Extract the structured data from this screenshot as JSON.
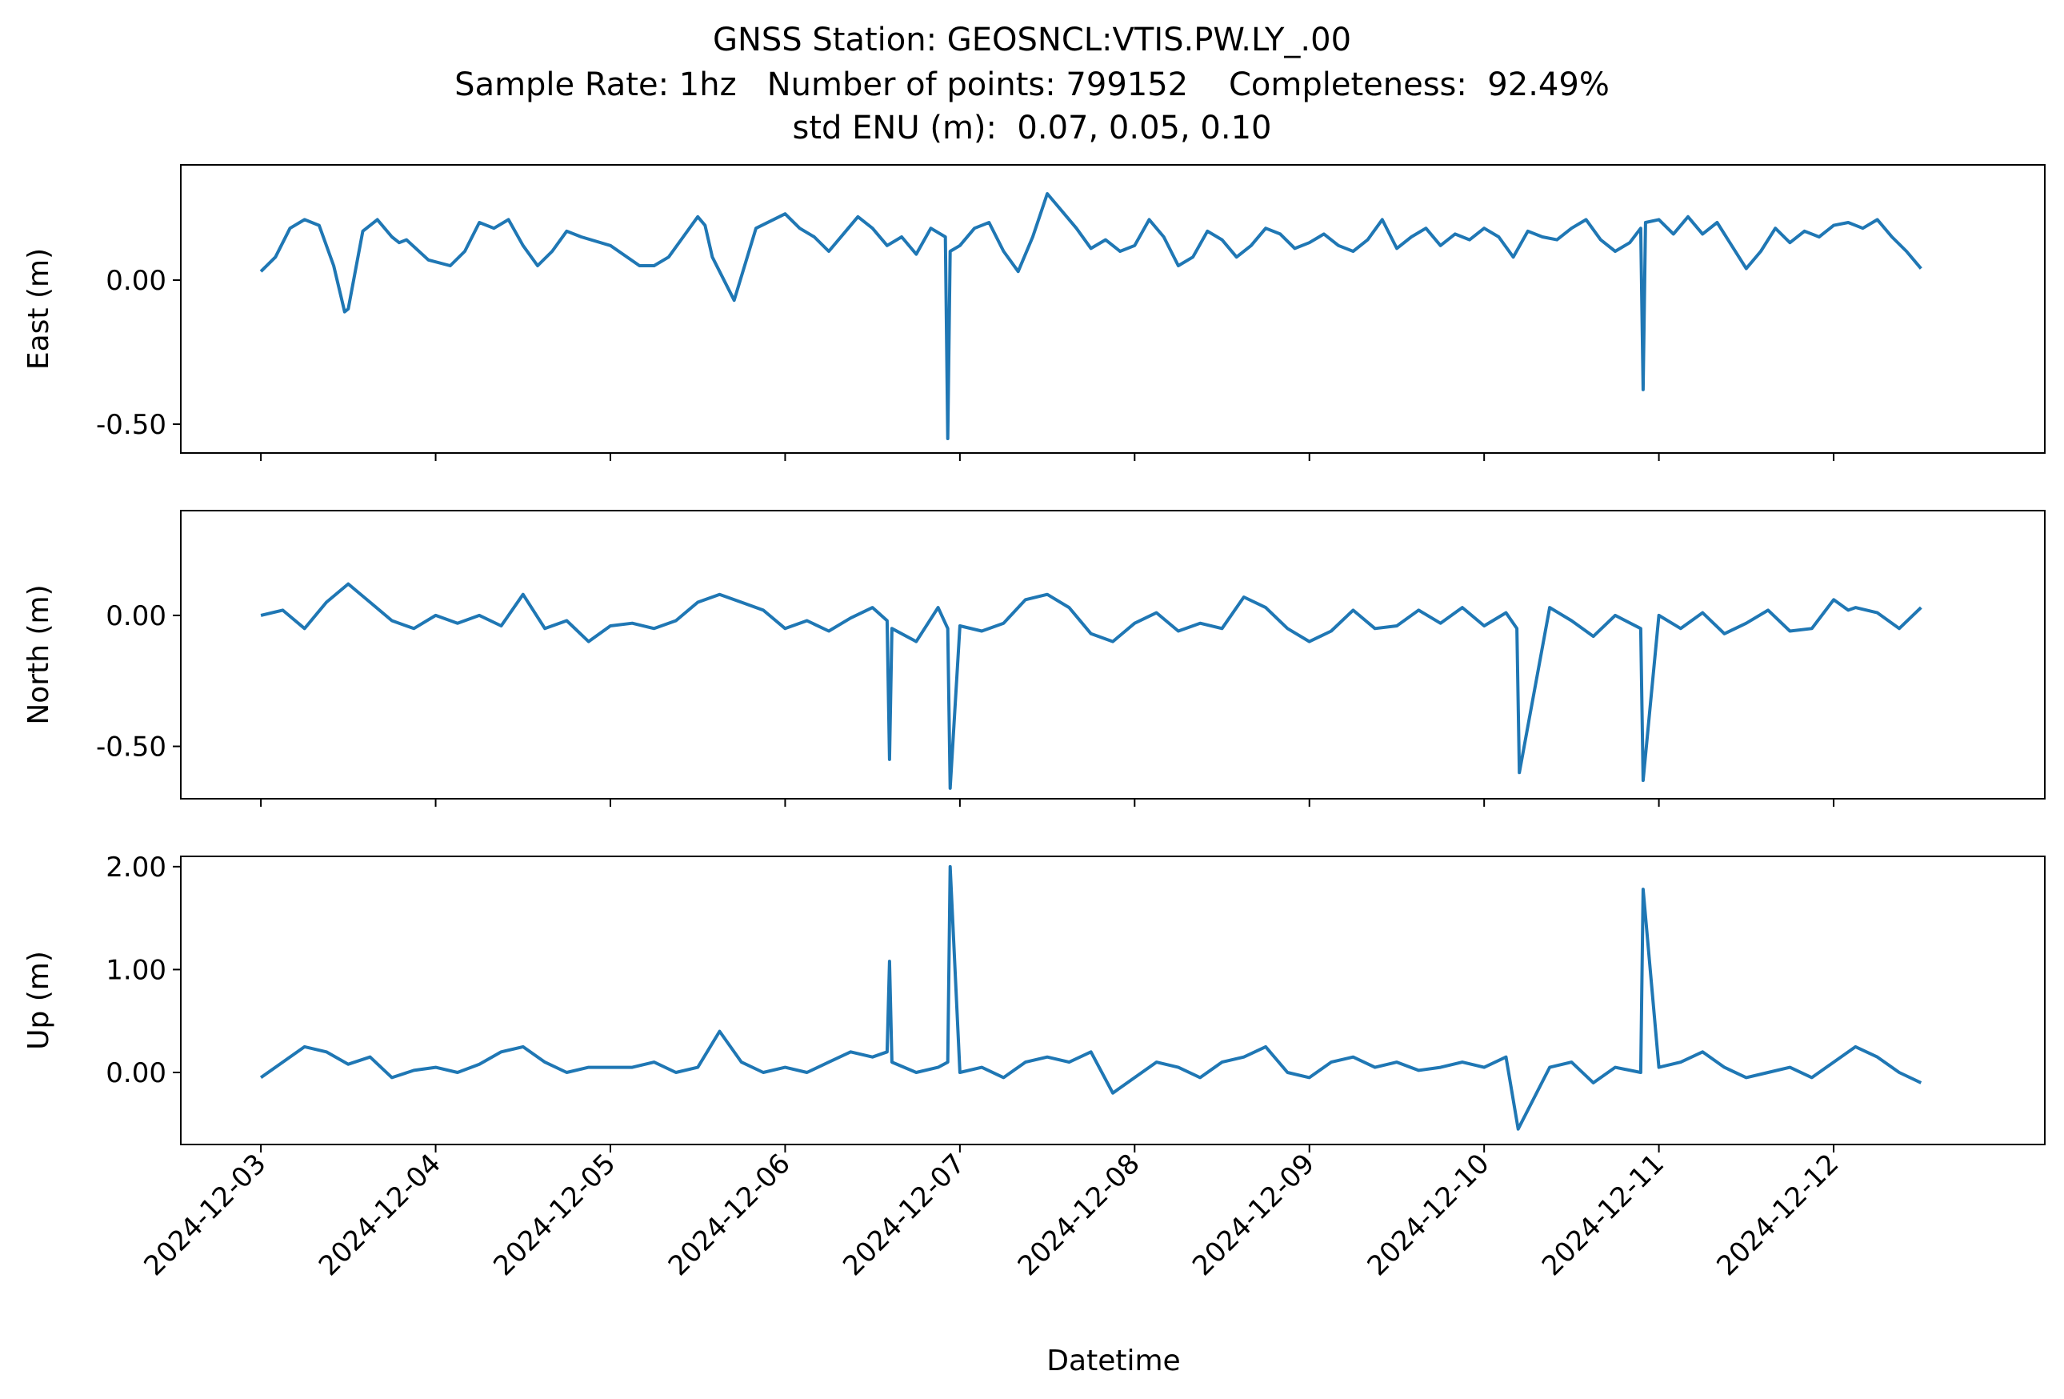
{
  "figure": {
    "title_lines": [
      "GNSS Station: GEOSNCL:VTIS.PW.LY_.00",
      "Sample Rate: 1hz   Number of points: 799152    Completeness:  92.49%",
      "std ENU (m):  0.07, 0.05, 0.10"
    ],
    "xlabel": "Datetime"
  },
  "colors": {
    "series": "#1f77b4",
    "axes": "#000000",
    "background": "#ffffff"
  },
  "chart_data": [
    {
      "type": "line",
      "ylabel": "East (m)",
      "ylim": [
        -0.6,
        0.4
      ],
      "yticks": [
        0.0,
        -0.5
      ],
      "ytick_labels": [
        "0.00",
        "-0.50"
      ],
      "xlim": [
        "2024-12-02 13:00",
        "2024-12-13 05:00"
      ],
      "xtick_labels": [],
      "grid": false,
      "series": [
        {
          "x": [
            "2024-12-03 00:00",
            "2024-12-03 02:00",
            "2024-12-03 04:00",
            "2024-12-03 06:00",
            "2024-12-03 08:00",
            "2024-12-03 10:00",
            "2024-12-03 11:30",
            "2024-12-03 12:00",
            "2024-12-03 14:00",
            "2024-12-03 16:00",
            "2024-12-03 18:00",
            "2024-12-03 19:00",
            "2024-12-03 20:00",
            "2024-12-03 23:00",
            "2024-12-04 02:00",
            "2024-12-04 04:00",
            "2024-12-04 06:00",
            "2024-12-04 08:00",
            "2024-12-04 10:00",
            "2024-12-04 12:00",
            "2024-12-04 14:00",
            "2024-12-04 16:00",
            "2024-12-04 18:00",
            "2024-12-04 20:00",
            "2024-12-05 00:00",
            "2024-12-05 04:00",
            "2024-12-05 06:00",
            "2024-12-05 08:00",
            "2024-12-05 10:00",
            "2024-12-05 12:00",
            "2024-12-05 13:00",
            "2024-12-05 14:00",
            "2024-12-05 17:00",
            "2024-12-05 20:00",
            "2024-12-06 00:00",
            "2024-12-06 02:00",
            "2024-12-06 04:00",
            "2024-12-06 06:00",
            "2024-12-06 08:00",
            "2024-12-06 10:00",
            "2024-12-06 12:00",
            "2024-12-06 14:00",
            "2024-12-06 16:00",
            "2024-12-06 18:00",
            "2024-12-06 20:00",
            "2024-12-06 22:00",
            "2024-12-06 22:20",
            "2024-12-06 22:40",
            "2024-12-07 00:00",
            "2024-12-07 02:00",
            "2024-12-07 04:00",
            "2024-12-07 06:00",
            "2024-12-07 08:00",
            "2024-12-07 10:00",
            "2024-12-07 12:00",
            "2024-12-07 14:00",
            "2024-12-07 16:00",
            "2024-12-07 18:00",
            "2024-12-07 20:00",
            "2024-12-07 22:00",
            "2024-12-08 00:00",
            "2024-12-08 02:00",
            "2024-12-08 04:00",
            "2024-12-08 06:00",
            "2024-12-08 08:00",
            "2024-12-08 10:00",
            "2024-12-08 12:00",
            "2024-12-08 14:00",
            "2024-12-08 16:00",
            "2024-12-08 18:00",
            "2024-12-08 20:00",
            "2024-12-08 22:00",
            "2024-12-09 00:00",
            "2024-12-09 02:00",
            "2024-12-09 04:00",
            "2024-12-09 06:00",
            "2024-12-09 08:00",
            "2024-12-09 10:00",
            "2024-12-09 12:00",
            "2024-12-09 14:00",
            "2024-12-09 16:00",
            "2024-12-09 18:00",
            "2024-12-09 20:00",
            "2024-12-09 22:00",
            "2024-12-10 00:00",
            "2024-12-10 02:00",
            "2024-12-10 04:00",
            "2024-12-10 06:00",
            "2024-12-10 08:00",
            "2024-12-10 10:00",
            "2024-12-10 12:00",
            "2024-12-10 14:00",
            "2024-12-10 16:00",
            "2024-12-10 18:00",
            "2024-12-10 20:00",
            "2024-12-10 21:30",
            "2024-12-10 21:50",
            "2024-12-10 22:10",
            "2024-12-11 00:00",
            "2024-12-11 02:00",
            "2024-12-11 04:00",
            "2024-12-11 06:00",
            "2024-12-11 08:00",
            "2024-12-11 10:00",
            "2024-12-11 12:00",
            "2024-12-11 14:00",
            "2024-12-11 16:00",
            "2024-12-11 18:00",
            "2024-12-11 20:00",
            "2024-12-11 22:00",
            "2024-12-12 00:00",
            "2024-12-12 02:00",
            "2024-12-12 04:00",
            "2024-12-12 06:00",
            "2024-12-12 08:00",
            "2024-12-12 10:00",
            "2024-12-12 12:00"
          ],
          "y": [
            0.03,
            0.08,
            0.18,
            0.21,
            0.19,
            0.05,
            -0.11,
            -0.1,
            0.17,
            0.21,
            0.15,
            0.13,
            0.14,
            0.07,
            0.05,
            0.1,
            0.2,
            0.18,
            0.21,
            0.12,
            0.05,
            0.1,
            0.17,
            0.15,
            0.12,
            0.05,
            0.05,
            0.08,
            0.15,
            0.22,
            0.19,
            0.08,
            -0.07,
            0.18,
            0.23,
            0.18,
            0.15,
            0.1,
            0.16,
            0.22,
            0.18,
            0.12,
            0.15,
            0.09,
            0.18,
            0.15,
            -0.55,
            0.1,
            0.12,
            0.18,
            0.2,
            0.1,
            0.03,
            0.15,
            0.3,
            0.24,
            0.18,
            0.11,
            0.14,
            0.1,
            0.12,
            0.21,
            0.15,
            0.05,
            0.08,
            0.17,
            0.14,
            0.08,
            0.12,
            0.18,
            0.16,
            0.11,
            0.13,
            0.16,
            0.12,
            0.1,
            0.14,
            0.21,
            0.11,
            0.15,
            0.18,
            0.12,
            0.16,
            0.14,
            0.18,
            0.15,
            0.08,
            0.17,
            0.15,
            0.14,
            0.18,
            0.21,
            0.14,
            0.1,
            0.13,
            0.18,
            -0.38,
            0.2,
            0.21,
            0.16,
            0.22,
            0.16,
            0.2,
            0.12,
            0.04,
            0.1,
            0.18,
            0.13,
            0.17,
            0.15,
            0.19,
            0.2,
            0.18,
            0.21,
            0.15,
            0.1,
            0.04
          ]
        }
      ]
    },
    {
      "type": "line",
      "ylabel": "North (m)",
      "ylim": [
        -0.7,
        0.4
      ],
      "yticks": [
        0.0,
        -0.5
      ],
      "ytick_labels": [
        "0.00",
        "-0.50"
      ],
      "xlim": [
        "2024-12-02 13:00",
        "2024-12-13 05:00"
      ],
      "xtick_labels": [],
      "grid": false,
      "series": [
        {
          "x": [
            "2024-12-03 00:00",
            "2024-12-03 03:00",
            "2024-12-03 06:00",
            "2024-12-03 09:00",
            "2024-12-03 12:00",
            "2024-12-03 15:00",
            "2024-12-03 18:00",
            "2024-12-03 21:00",
            "2024-12-04 00:00",
            "2024-12-04 03:00",
            "2024-12-04 06:00",
            "2024-12-04 09:00",
            "2024-12-04 12:00",
            "2024-12-04 15:00",
            "2024-12-04 18:00",
            "2024-12-04 21:00",
            "2024-12-05 00:00",
            "2024-12-05 03:00",
            "2024-12-05 06:00",
            "2024-12-05 09:00",
            "2024-12-05 12:00",
            "2024-12-05 15:00",
            "2024-12-05 18:00",
            "2024-12-05 21:00",
            "2024-12-06 00:00",
            "2024-12-06 03:00",
            "2024-12-06 06:00",
            "2024-12-06 09:00",
            "2024-12-06 12:00",
            "2024-12-06 14:00",
            "2024-12-06 14:20",
            "2024-12-06 14:40",
            "2024-12-06 18:00",
            "2024-12-06 21:00",
            "2024-12-06 22:20",
            "2024-12-06 22:40",
            "2024-12-07 00:00",
            "2024-12-07 03:00",
            "2024-12-07 06:00",
            "2024-12-07 09:00",
            "2024-12-07 12:00",
            "2024-12-07 15:00",
            "2024-12-07 18:00",
            "2024-12-07 21:00",
            "2024-12-08 00:00",
            "2024-12-08 03:00",
            "2024-12-08 06:00",
            "2024-12-08 09:00",
            "2024-12-08 12:00",
            "2024-12-08 15:00",
            "2024-12-08 18:00",
            "2024-12-08 21:00",
            "2024-12-09 00:00",
            "2024-12-09 03:00",
            "2024-12-09 06:00",
            "2024-12-09 09:00",
            "2024-12-09 12:00",
            "2024-12-09 15:00",
            "2024-12-09 18:00",
            "2024-12-09 21:00",
            "2024-12-10 00:00",
            "2024-12-10 03:00",
            "2024-12-10 04:30",
            "2024-12-10 04:50",
            "2024-12-10 09:00",
            "2024-12-10 12:00",
            "2024-12-10 15:00",
            "2024-12-10 18:00",
            "2024-12-10 21:30",
            "2024-12-10 21:50",
            "2024-12-11 00:00",
            "2024-12-11 03:00",
            "2024-12-11 06:00",
            "2024-12-11 09:00",
            "2024-12-11 12:00",
            "2024-12-11 15:00",
            "2024-12-11 18:00",
            "2024-12-11 21:00",
            "2024-12-12 00:00",
            "2024-12-12 02:00",
            "2024-12-12 03:00",
            "2024-12-12 06:00",
            "2024-12-12 09:00",
            "2024-12-12 12:00"
          ],
          "y": [
            0.0,
            0.02,
            -0.05,
            0.05,
            0.12,
            0.05,
            -0.02,
            -0.05,
            0.0,
            -0.03,
            0.0,
            -0.04,
            0.08,
            -0.05,
            -0.02,
            -0.1,
            -0.04,
            -0.03,
            -0.05,
            -0.02,
            0.05,
            0.08,
            0.05,
            0.02,
            -0.05,
            -0.02,
            -0.06,
            -0.01,
            0.03,
            -0.02,
            -0.55,
            -0.05,
            -0.1,
            0.03,
            -0.05,
            -0.66,
            -0.04,
            -0.06,
            -0.03,
            0.06,
            0.08,
            0.03,
            -0.07,
            -0.1,
            -0.03,
            0.01,
            -0.06,
            -0.03,
            -0.05,
            0.07,
            0.03,
            -0.05,
            -0.1,
            -0.06,
            0.02,
            -0.05,
            -0.04,
            0.02,
            -0.03,
            0.03,
            -0.04,
            0.01,
            -0.05,
            -0.6,
            0.03,
            -0.02,
            -0.08,
            0.0,
            -0.05,
            -0.63,
            0.0,
            -0.05,
            0.01,
            -0.07,
            -0.03,
            0.02,
            -0.06,
            -0.05,
            0.06,
            0.02,
            0.03,
            0.01,
            -0.05,
            0.03
          ]
        }
      ]
    },
    {
      "type": "line",
      "ylabel": "Up (m)",
      "ylim": [
        -0.7,
        2.1
      ],
      "yticks": [
        2.0,
        1.0,
        0.0
      ],
      "ytick_labels": [
        "2.00",
        "1.00",
        "0.00"
      ],
      "xlim": [
        "2024-12-02 13:00",
        "2024-12-13 05:00"
      ],
      "xticks": [
        "2024-12-03",
        "2024-12-04",
        "2024-12-05",
        "2024-12-06",
        "2024-12-07",
        "2024-12-08",
        "2024-12-09",
        "2024-12-10",
        "2024-12-11",
        "2024-12-12"
      ],
      "xtick_labels": [
        "2024-12-03",
        "2024-12-04",
        "2024-12-05",
        "2024-12-06",
        "2024-12-07",
        "2024-12-08",
        "2024-12-09",
        "2024-12-10",
        "2024-12-11",
        "2024-12-12"
      ],
      "grid": false,
      "series": [
        {
          "x": [
            "2024-12-03 00:00",
            "2024-12-03 03:00",
            "2024-12-03 06:00",
            "2024-12-03 09:00",
            "2024-12-03 12:00",
            "2024-12-03 15:00",
            "2024-12-03 18:00",
            "2024-12-03 21:00",
            "2024-12-04 00:00",
            "2024-12-04 03:00",
            "2024-12-04 06:00",
            "2024-12-04 09:00",
            "2024-12-04 12:00",
            "2024-12-04 15:00",
            "2024-12-04 18:00",
            "2024-12-04 21:00",
            "2024-12-05 00:00",
            "2024-12-05 03:00",
            "2024-12-05 06:00",
            "2024-12-05 09:00",
            "2024-12-05 12:00",
            "2024-12-05 15:00",
            "2024-12-05 18:00",
            "2024-12-05 21:00",
            "2024-12-06 00:00",
            "2024-12-06 03:00",
            "2024-12-06 06:00",
            "2024-12-06 09:00",
            "2024-12-06 12:00",
            "2024-12-06 14:00",
            "2024-12-06 14:20",
            "2024-12-06 14:40",
            "2024-12-06 18:00",
            "2024-12-06 21:00",
            "2024-12-06 22:20",
            "2024-12-06 22:40",
            "2024-12-07 00:00",
            "2024-12-07 03:00",
            "2024-12-07 06:00",
            "2024-12-07 09:00",
            "2024-12-07 12:00",
            "2024-12-07 15:00",
            "2024-12-07 18:00",
            "2024-12-07 21:00",
            "2024-12-08 00:00",
            "2024-12-08 03:00",
            "2024-12-08 06:00",
            "2024-12-08 09:00",
            "2024-12-08 12:00",
            "2024-12-08 15:00",
            "2024-12-08 18:00",
            "2024-12-08 21:00",
            "2024-12-09 00:00",
            "2024-12-09 03:00",
            "2024-12-09 06:00",
            "2024-12-09 09:00",
            "2024-12-09 12:00",
            "2024-12-09 15:00",
            "2024-12-09 18:00",
            "2024-12-09 21:00",
            "2024-12-10 00:00",
            "2024-12-10 03:00",
            "2024-12-10 04:40",
            "2024-12-10 09:00",
            "2024-12-10 12:00",
            "2024-12-10 15:00",
            "2024-12-10 18:00",
            "2024-12-10 21:30",
            "2024-12-10 21:50",
            "2024-12-11 00:00",
            "2024-12-11 03:00",
            "2024-12-11 06:00",
            "2024-12-11 09:00",
            "2024-12-11 12:00",
            "2024-12-11 15:00",
            "2024-12-11 18:00",
            "2024-12-11 21:00",
            "2024-12-12 00:00",
            "2024-12-12 03:00",
            "2024-12-12 06:00",
            "2024-12-12 09:00",
            "2024-12-12 12:00"
          ],
          "y": [
            -0.05,
            0.1,
            0.25,
            0.2,
            0.08,
            0.15,
            -0.05,
            0.02,
            0.05,
            0.0,
            0.08,
            0.2,
            0.25,
            0.1,
            0.0,
            0.05,
            0.05,
            0.05,
            0.1,
            0.0,
            0.05,
            0.4,
            0.1,
            0.0,
            0.05,
            0.0,
            0.1,
            0.2,
            0.15,
            0.2,
            1.08,
            0.1,
            0.0,
            0.05,
            0.1,
            2.0,
            0.0,
            0.05,
            -0.05,
            0.1,
            0.15,
            0.1,
            0.2,
            -0.2,
            -0.05,
            0.1,
            0.05,
            -0.05,
            0.1,
            0.15,
            0.25,
            0.0,
            -0.05,
            0.1,
            0.15,
            0.05,
            0.1,
            0.02,
            0.05,
            0.1,
            0.05,
            0.15,
            -0.55,
            0.05,
            0.1,
            -0.1,
            0.05,
            0.0,
            1.78,
            0.05,
            0.1,
            0.2,
            0.05,
            -0.05,
            0.0,
            0.05,
            -0.05,
            0.1,
            0.25,
            0.15,
            0.0,
            -0.1
          ]
        }
      ]
    }
  ]
}
